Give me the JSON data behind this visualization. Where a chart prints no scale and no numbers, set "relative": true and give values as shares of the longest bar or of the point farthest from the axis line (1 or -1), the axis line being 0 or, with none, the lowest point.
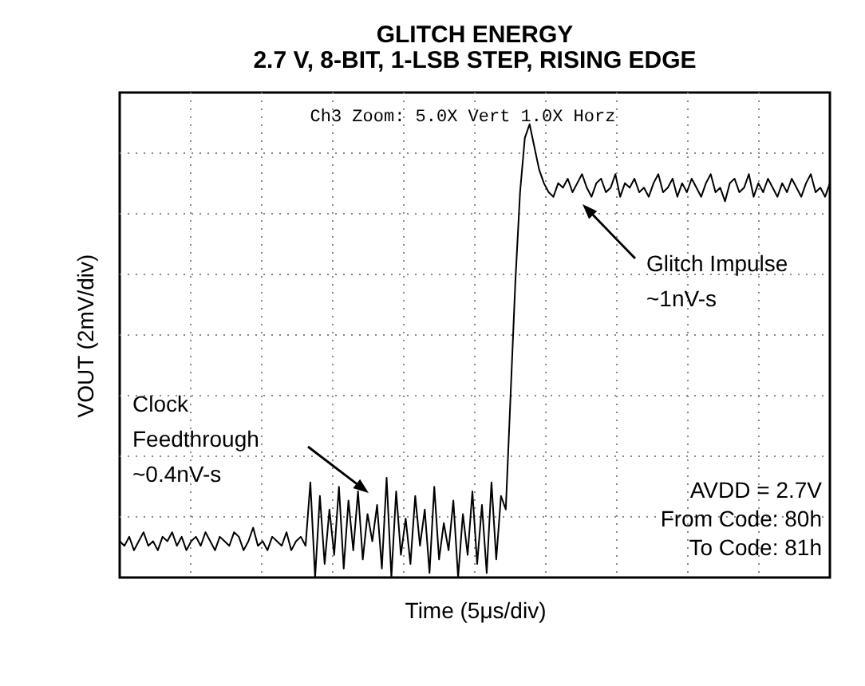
{
  "chart_data": {
    "type": "line",
    "title": "GLITCH ENERGY",
    "subtitle": "2.7 V, 8-BIT, 1-LSB STEP, RISING EDGE",
    "xlabel": "Time (5μs/div)",
    "ylabel": "VOUT (2mV/div)",
    "annotations": [
      "Ch3 Zoom:   5.0X Vert   1.0X Horz",
      "Clock\nFeedthrough\n~0.4nV-s",
      "Glitch Impulse\n~1nV-s",
      "AVDD = 2.7V\nFrom Code: 80h\nTo Code: 81h"
    ],
    "relative": true,
    "grid": true,
    "color": "#000000",
    "categories": [
      null,
      null,
      null,
      null,
      null,
      null,
      null,
      null,
      null,
      null,
      null,
      null,
      null,
      null,
      null,
      null,
      null,
      null,
      null,
      null,
      null,
      null,
      null,
      null,
      null,
      null,
      null,
      null,
      null,
      null,
      null,
      null,
      null,
      null,
      null,
      null,
      null,
      null,
      null,
      null,
      null,
      null,
      null,
      null,
      null,
      null,
      null,
      null,
      null,
      null,
      null,
      null,
      null,
      null,
      null,
      null,
      null,
      null,
      null,
      null,
      null,
      null,
      null,
      null,
      null,
      null,
      null,
      null,
      null,
      null,
      null,
      null,
      null,
      null,
      null,
      null,
      null,
      null,
      null,
      null,
      null,
      null,
      null,
      null,
      null,
      null,
      null,
      null,
      null,
      null,
      null,
      null,
      null,
      null,
      null,
      null,
      null,
      null,
      null,
      null,
      null,
      null,
      null,
      null,
      null,
      null,
      null,
      null,
      null,
      null,
      null,
      null,
      null,
      null,
      null,
      null,
      null,
      null,
      null,
      null,
      null,
      null,
      null,
      null,
      null,
      null,
      null,
      null,
      null,
      null,
      null,
      null,
      null,
      null,
      null,
      null,
      null,
      null,
      null,
      null,
      null,
      null,
      null,
      null,
      null,
      null,
      null,
      null,
      null,
      null
    ],
    "values": [
      0.08,
      0.07,
      0.09,
      0.06,
      0.08,
      0.1,
      0.07,
      0.08,
      0.06,
      0.09,
      0.08,
      0.1,
      0.07,
      0.09,
      0.06,
      0.08,
      0.09,
      0.07,
      0.1,
      0.08,
      0.06,
      0.09,
      0.08,
      0.07,
      0.1,
      0.09,
      0.06,
      0.08,
      0.11,
      0.07,
      0.08,
      0.06,
      0.09,
      0.08,
      0.07,
      0.1,
      0.06,
      0.08,
      0.09,
      0.07,
      0.21,
      0.0,
      0.18,
      0.03,
      0.15,
      0.05,
      0.2,
      0.02,
      0.17,
      0.06,
      0.19,
      0.04,
      0.14,
      0.08,
      0.16,
      0.02,
      0.22,
      0.0,
      0.19,
      0.05,
      0.13,
      0.03,
      0.18,
      0.07,
      0.15,
      0.01,
      0.2,
      0.04,
      0.12,
      0.06,
      0.17,
      0.0,
      0.14,
      0.05,
      0.19,
      0.03,
      0.16,
      0.01,
      0.21,
      0.04,
      0.18,
      0.15,
      0.4,
      0.65,
      0.85,
      0.97,
      1.0,
      0.95,
      0.9,
      0.87,
      0.85,
      0.84,
      0.87,
      0.86,
      0.88,
      0.85,
      0.87,
      0.89,
      0.86,
      0.84,
      0.87,
      0.88,
      0.85,
      0.86,
      0.89,
      0.84,
      0.87,
      0.86,
      0.88,
      0.85,
      0.86,
      0.84,
      0.87,
      0.89,
      0.85,
      0.86,
      0.88,
      0.84,
      0.87,
      0.85,
      0.88,
      0.86,
      0.84,
      0.87,
      0.89,
      0.85,
      0.86,
      0.83,
      0.87,
      0.88,
      0.85,
      0.86,
      0.89,
      0.84,
      0.87,
      0.85,
      0.88,
      0.86,
      0.84,
      0.87,
      0.85,
      0.88,
      0.86,
      0.84,
      0.87,
      0.89,
      0.85,
      0.86,
      0.84,
      0.87
    ]
  }
}
